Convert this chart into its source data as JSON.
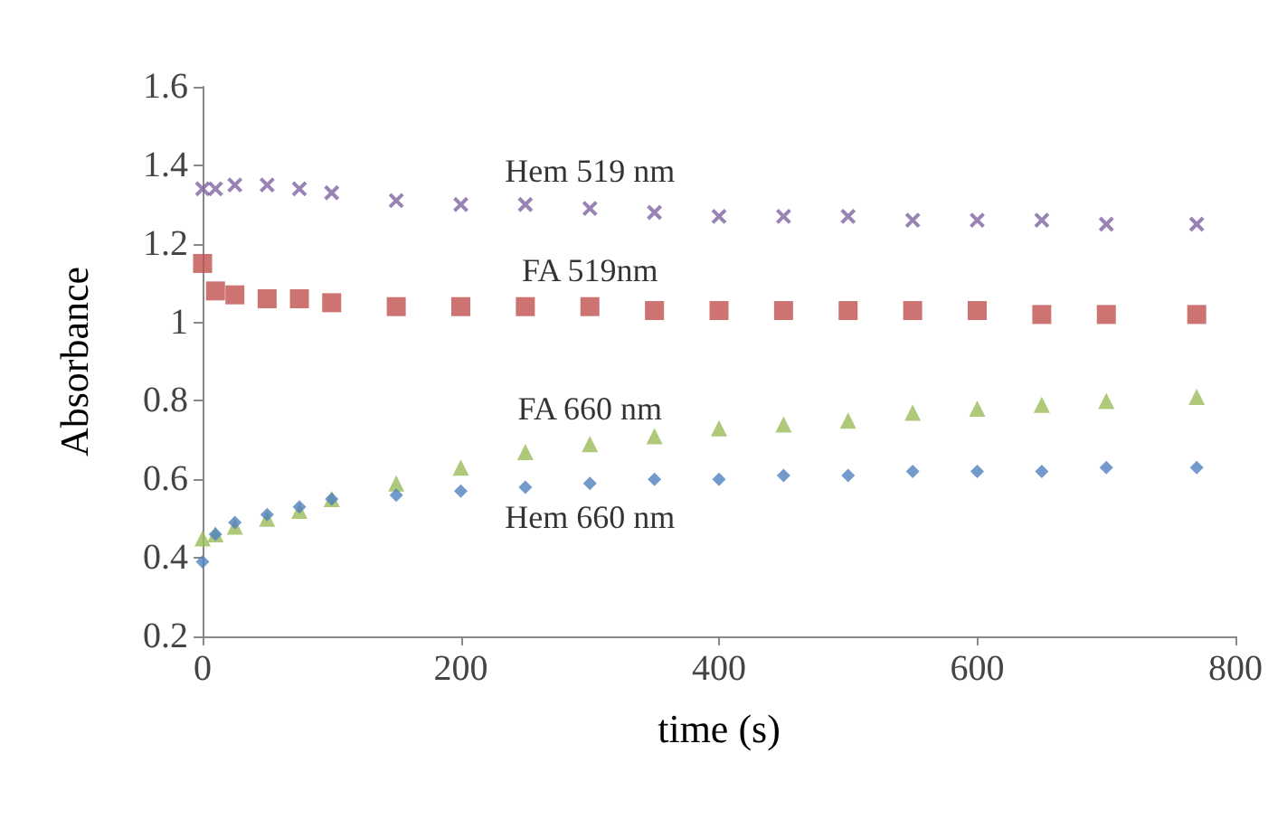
{
  "chart_data": {
    "type": "scatter",
    "xlabel": "time (s)",
    "ylabel": "Absorbance",
    "x": [
      0,
      10,
      25,
      50,
      75,
      100,
      150,
      200,
      250,
      300,
      350,
      400,
      450,
      500,
      550,
      600,
      650,
      700,
      770
    ],
    "series": [
      {
        "name": "Hem 519 nm",
        "color": "#8064a2",
        "marker": "cross",
        "values": [
          1.34,
          1.34,
          1.35,
          1.35,
          1.34,
          1.33,
          1.31,
          1.3,
          1.3,
          1.29,
          1.28,
          1.27,
          1.27,
          1.27,
          1.26,
          1.26,
          1.26,
          1.25,
          1.25
        ]
      },
      {
        "name": "FA 519nm",
        "color": "#c0504d",
        "marker": "square",
        "values": [
          1.15,
          1.08,
          1.07,
          1.06,
          1.06,
          1.05,
          1.04,
          1.04,
          1.04,
          1.04,
          1.03,
          1.03,
          1.03,
          1.03,
          1.03,
          1.03,
          1.02,
          1.02,
          1.02
        ]
      },
      {
        "name": "FA 660 nm",
        "color": "#9bbb59",
        "marker": "triangle",
        "values": [
          0.45,
          0.46,
          0.48,
          0.5,
          0.52,
          0.55,
          0.59,
          0.63,
          0.67,
          0.69,
          0.71,
          0.73,
          0.74,
          0.75,
          0.77,
          0.78,
          0.79,
          0.8,
          0.81
        ]
      },
      {
        "name": "Hem 660 nm",
        "color": "#4f81bd",
        "marker": "diamond",
        "values": [
          0.39,
          0.46,
          0.49,
          0.51,
          0.53,
          0.55,
          0.56,
          0.57,
          0.58,
          0.59,
          0.6,
          0.6,
          0.61,
          0.61,
          0.62,
          0.62,
          0.62,
          0.63,
          0.63
        ]
      }
    ],
    "xlim": [
      0,
      800
    ],
    "xticks": [
      0,
      200,
      400,
      600,
      800
    ],
    "ylim": [
      0.2,
      1.6
    ],
    "yticks": [
      0.2,
      0.4,
      0.6,
      0.8,
      1,
      1.2,
      1.4,
      1.6
    ],
    "grid": false,
    "legend": false
  }
}
